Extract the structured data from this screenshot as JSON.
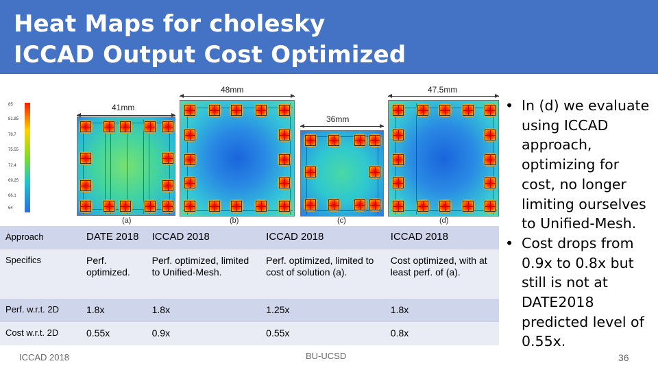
{
  "slide": {
    "title_line1": "Heat Maps for cholesky",
    "title_line2": "ICCAD Output Cost Optimized"
  },
  "figure": {
    "colorbar_ticks": [
      "85",
      "81.85",
      "78.7",
      "75.55",
      "72.4",
      "69.25",
      "66.1",
      "64"
    ],
    "panels": [
      {
        "label": "(a)",
        "dimension": "41mm"
      },
      {
        "label": "(b)",
        "dimension": "48mm"
      },
      {
        "label": "(c)",
        "dimension": "36mm"
      },
      {
        "label": "(d)",
        "dimension": "47.5mm"
      }
    ]
  },
  "table": {
    "rows": [
      {
        "header": "Approach",
        "cells": [
          "DATE 2018",
          "ICCAD 2018",
          "ICCAD 2018",
          "ICCAD 2018"
        ]
      },
      {
        "header": "Specifics",
        "cells": [
          "Perf. optimized.",
          "Perf. optimized, limited to Unified-Mesh.",
          "Perf. optimized, limited to cost of solution (a).",
          "Cost optimized, with at least perf. of (a)."
        ]
      },
      {
        "header": "Perf. w.r.t. 2D",
        "cells": [
          "1.8x",
          "1.8x",
          "1.25x",
          "1.8x"
        ]
      },
      {
        "header": "Cost w.r.t. 2D",
        "cells": [
          "0.55x",
          "0.9x",
          "0.55x",
          "0.8x"
        ]
      }
    ]
  },
  "bullets": [
    "In (d) we evaluate using ICCAD approach, optimizing for cost, no longer limiting ourselves to Unified-Mesh.",
    "Cost drops from 0.9x to 0.8x but still is not at DATE2018 predicted level of 0.55x."
  ],
  "footer": {
    "left": "ICCAD 2018",
    "center": "BU-UCSD",
    "page_number": "36"
  },
  "colors": {
    "title_bg": "#4472c4",
    "table_row_dark": "#cfd5ea",
    "table_row_light": "#e9ebf5"
  }
}
